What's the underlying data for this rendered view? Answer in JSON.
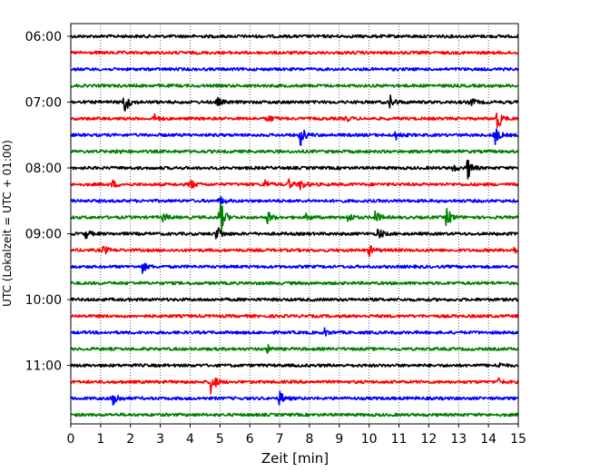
{
  "chart_data": {
    "type": "line",
    "subtype": "helicorder",
    "xlabel": "Zeit  [min]",
    "ylabel": "UTC (Lokalzeit = UTC + 01:00)",
    "xlim": [
      0,
      15
    ],
    "x_ticks": [
      0,
      1,
      2,
      3,
      4,
      5,
      6,
      7,
      8,
      9,
      10,
      11,
      12,
      13,
      14,
      15
    ],
    "y_tick_labels": [
      "06:00",
      "07:00",
      "08:00",
      "09:00",
      "10:00",
      "11:00"
    ],
    "grid": "vertical dotted at each minute",
    "rows_per_hour": 4,
    "minutes_per_row": 15,
    "color_cycle": [
      "#000000",
      "#ff0000",
      "#0000ff",
      "#008000"
    ],
    "rows": [
      {
        "start": "06:00",
        "events": []
      },
      {
        "start": "06:15",
        "events": []
      },
      {
        "start": "06:30",
        "events": []
      },
      {
        "start": "06:45",
        "events": []
      },
      {
        "start": "07:00",
        "events": [
          {
            "t": 1.8,
            "amp": 13
          },
          {
            "t": 4.9,
            "amp": 5
          },
          {
            "t": 10.7,
            "amp": 8
          },
          {
            "t": 13.4,
            "amp": 5
          }
        ]
      },
      {
        "start": "07:15",
        "events": [
          {
            "t": 2.8,
            "amp": 4
          },
          {
            "t": 6.6,
            "amp": 5
          },
          {
            "t": 9.2,
            "amp": 3
          },
          {
            "t": 14.3,
            "amp": 12
          }
        ]
      },
      {
        "start": "07:30",
        "events": [
          {
            "t": 7.7,
            "amp": 12
          },
          {
            "t": 10.9,
            "amp": 5
          },
          {
            "t": 14.2,
            "amp": 12
          }
        ]
      },
      {
        "start": "07:45",
        "events": [
          {
            "t": 1.5,
            "amp": 3
          }
        ]
      },
      {
        "start": "08:00",
        "events": [
          {
            "t": 13.3,
            "amp": 12
          },
          {
            "t": 12.8,
            "amp": 4
          }
        ]
      },
      {
        "start": "08:15",
        "events": [
          {
            "t": 1.4,
            "amp": 4
          },
          {
            "t": 4.0,
            "amp": 6
          },
          {
            "t": 6.5,
            "amp": 5
          },
          {
            "t": 7.3,
            "amp": 5
          },
          {
            "t": 7.7,
            "amp": 6
          }
        ]
      },
      {
        "start": "08:30",
        "events": [
          {
            "t": 5.0,
            "amp": 5
          }
        ]
      },
      {
        "start": "08:45",
        "events": [
          {
            "t": 3.1,
            "amp": 5
          },
          {
            "t": 5.0,
            "amp": 22
          },
          {
            "t": 6.6,
            "amp": 7
          },
          {
            "t": 7.9,
            "amp": 4
          },
          {
            "t": 9.3,
            "amp": 6
          },
          {
            "t": 10.2,
            "amp": 8
          },
          {
            "t": 12.6,
            "amp": 12
          }
        ]
      },
      {
        "start": "09:00",
        "events": [
          {
            "t": 0.5,
            "amp": 5
          },
          {
            "t": 4.9,
            "amp": 10
          },
          {
            "t": 10.3,
            "amp": 7
          }
        ]
      },
      {
        "start": "09:15",
        "events": [
          {
            "t": 1.1,
            "amp": 5
          },
          {
            "t": 10.0,
            "amp": 6
          },
          {
            "t": 14.8,
            "amp": 4
          }
        ]
      },
      {
        "start": "09:30",
        "events": [
          {
            "t": 2.4,
            "amp": 6
          }
        ]
      },
      {
        "start": "09:45",
        "events": []
      },
      {
        "start": "10:00",
        "events": []
      },
      {
        "start": "10:15",
        "events": []
      },
      {
        "start": "10:30",
        "events": [
          {
            "t": 8.5,
            "amp": 4
          }
        ]
      },
      {
        "start": "10:45",
        "events": [
          {
            "t": 6.6,
            "amp": 4
          }
        ]
      },
      {
        "start": "11:00",
        "events": [
          {
            "t": 14.3,
            "amp": 4
          }
        ]
      },
      {
        "start": "11:15",
        "events": [
          {
            "t": 4.7,
            "amp": 16
          },
          {
            "t": 14.3,
            "amp": 4
          }
        ]
      },
      {
        "start": "11:30",
        "events": [
          {
            "t": 1.4,
            "amp": 14
          },
          {
            "t": 7.0,
            "amp": 8
          }
        ]
      },
      {
        "start": "11:45",
        "events": []
      }
    ]
  }
}
